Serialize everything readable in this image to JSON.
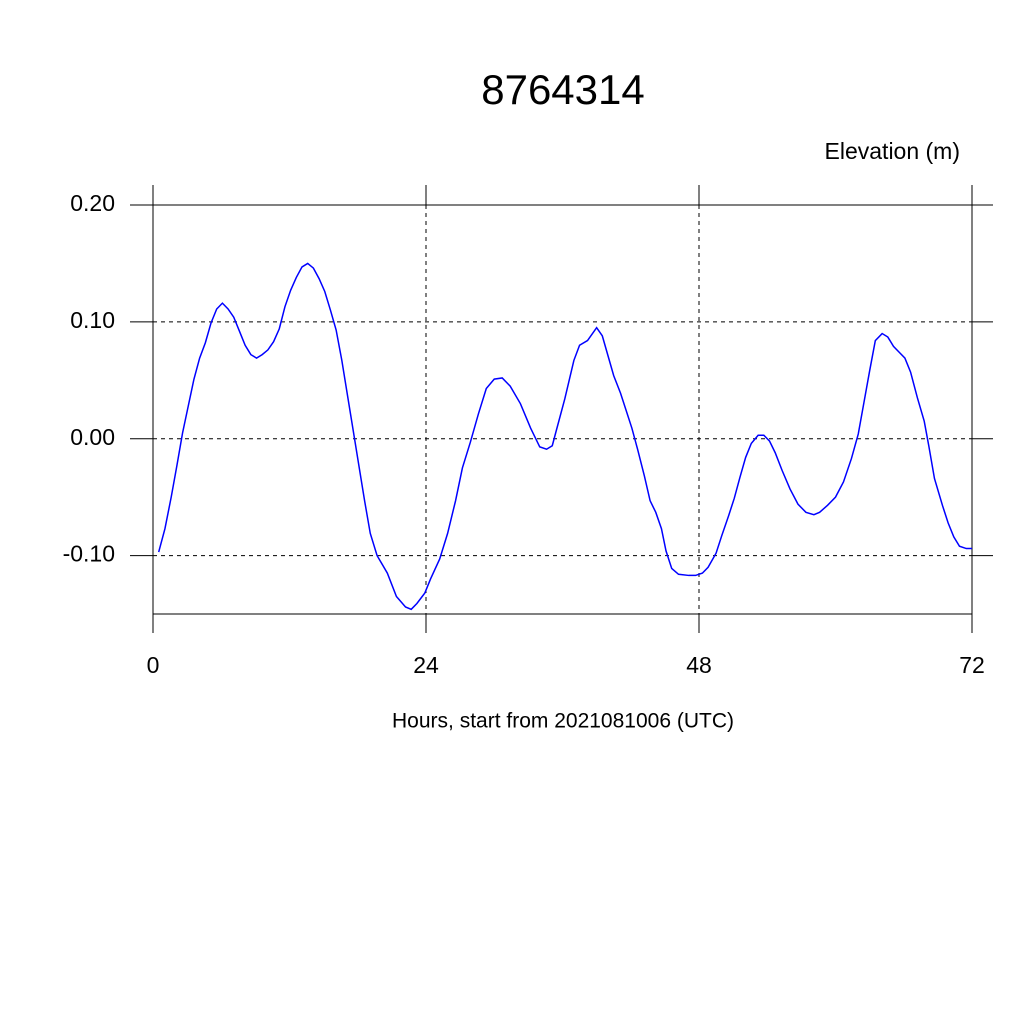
{
  "chart_data": {
    "type": "line",
    "title": "8764314",
    "y_label": "Elevation (m)",
    "x_label": "Hours, start from 2021081006 (UTC)",
    "xlim": [
      0,
      72
    ],
    "ylim": [
      -0.15,
      0.2
    ],
    "xticks": [
      0,
      24,
      48,
      72
    ],
    "yticks": [
      {
        "value": 0.2,
        "label": "0.20"
      },
      {
        "value": 0.1,
        "label": "0.10"
      },
      {
        "value": 0,
        "label": "0.00"
      },
      {
        "value": -0.1,
        "label": "-0.10"
      }
    ],
    "grid": true,
    "series": [
      {
        "name": "Elevation",
        "color": "#0000ff",
        "x": [
          0.5,
          1.05,
          1.6,
          2.1,
          2.6,
          3.1,
          3.6,
          4.1,
          4.6,
          5.1,
          5.6,
          6.1,
          6.6,
          7.1,
          7.6,
          8.1,
          8.6,
          9.1,
          9.6,
          10.1,
          10.6,
          11.1,
          11.6,
          12.1,
          12.6,
          13.1,
          13.6,
          14.1,
          14.6,
          15.1,
          15.6,
          16.1,
          16.6,
          17.1,
          17.6,
          18.1,
          18.6,
          19.1,
          19.7,
          20.6,
          21.4,
          22.2,
          22.7,
          23.2,
          23.9,
          24.4,
          25.2,
          25.9,
          26.6,
          27.2,
          27.9,
          28.6,
          29.3,
          30,
          30.7,
          31.4,
          32.3,
          33.2,
          34,
          34.6,
          35.1,
          35.4,
          36.2,
          37,
          37.5,
          38.2,
          39,
          39.5,
          40,
          40.5,
          41.1,
          41.6,
          42.1,
          42.6,
          43.2,
          43.7,
          44.2,
          44.7,
          45.1,
          45.6,
          46.2,
          47.1,
          47.7,
          48.3,
          48.8,
          49.5,
          50,
          50.6,
          51.1,
          51.6,
          52.1,
          52.6,
          53.2,
          53.7,
          54.2,
          54.7,
          55.3,
          56,
          56.7,
          57.4,
          58.1,
          58.6,
          59.3,
          60,
          60.7,
          61.4,
          62,
          62.5,
          63,
          63.5,
          64.1,
          64.6,
          65.1,
          65.6,
          66.1,
          66.6,
          67.2,
          67.8,
          68.2,
          68.7,
          69.4,
          69.9,
          70.4,
          70.9,
          71.5,
          72
        ],
        "values": [
          -0.097,
          -0.077,
          -0.05,
          -0.023,
          0.005,
          0.028,
          0.051,
          0.069,
          0.082,
          0.099,
          0.111,
          0.116,
          0.111,
          0.104,
          0.092,
          0.08,
          0.072,
          0.069,
          0.072,
          0.076,
          0.083,
          0.094,
          0.113,
          0.127,
          0.138,
          0.147,
          0.15,
          0.146,
          0.137,
          0.126,
          0.11,
          0.093,
          0.067,
          0.037,
          0.007,
          -0.023,
          -0.053,
          -0.081,
          -0.1,
          -0.115,
          -0.135,
          -0.144,
          -0.146,
          -0.141,
          -0.132,
          -0.12,
          -0.103,
          -0.081,
          -0.053,
          -0.025,
          -0.003,
          0.021,
          0.043,
          0.051,
          0.052,
          0.045,
          0.03,
          0.009,
          -0.007,
          -0.009,
          -0.006,
          0.005,
          0.034,
          0.067,
          0.08,
          0.084,
          0.095,
          0.088,
          0.071,
          0.054,
          0.039,
          0.024,
          0.009,
          -0.009,
          -0.032,
          -0.053,
          -0.063,
          -0.077,
          -0.096,
          -0.111,
          -0.116,
          -0.117,
          -0.117,
          -0.115,
          -0.11,
          -0.098,
          -0.083,
          -0.066,
          -0.051,
          -0.033,
          -0.016,
          -0.004,
          0.003,
          0.003,
          -0.002,
          -0.012,
          -0.027,
          -0.043,
          -0.056,
          -0.063,
          -0.065,
          -0.063,
          -0.057,
          -0.05,
          -0.037,
          -0.017,
          0.004,
          0.031,
          0.058,
          0.084,
          0.09,
          0.087,
          0.079,
          0.074,
          0.069,
          0.057,
          0.035,
          0.015,
          -0.006,
          -0.034,
          -0.057,
          -0.072,
          -0.084,
          -0.092,
          -0.094,
          -0.094
        ]
      }
    ]
  }
}
